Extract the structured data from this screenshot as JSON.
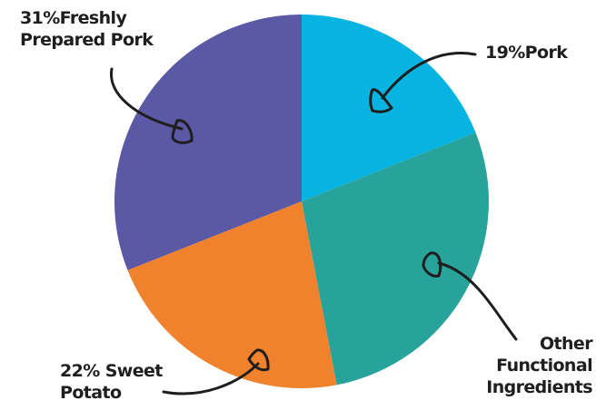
{
  "chart_data": {
    "type": "pie",
    "slices": [
      {
        "label": "Freshly Prepared Pork",
        "value": 31,
        "color": "#5b58a6"
      },
      {
        "label": "Pork",
        "value": 19,
        "color": "#07b3e0"
      },
      {
        "label": "Other Functional Ingredients",
        "value": 28,
        "color": "#28a39c"
      },
      {
        "label": "Sweet Potato",
        "value": 22,
        "color": "#f0812d"
      }
    ],
    "labels": [
      {
        "lines": [
          "31%Freshly",
          "Prepared Pork"
        ]
      },
      {
        "lines": [
          "19%Pork"
        ]
      },
      {
        "lines": [
          "Other",
          "Functional",
          "Ingredients"
        ]
      },
      {
        "lines": [
          "22% Sweet",
          "Potato"
        ]
      }
    ],
    "legend": "none"
  }
}
